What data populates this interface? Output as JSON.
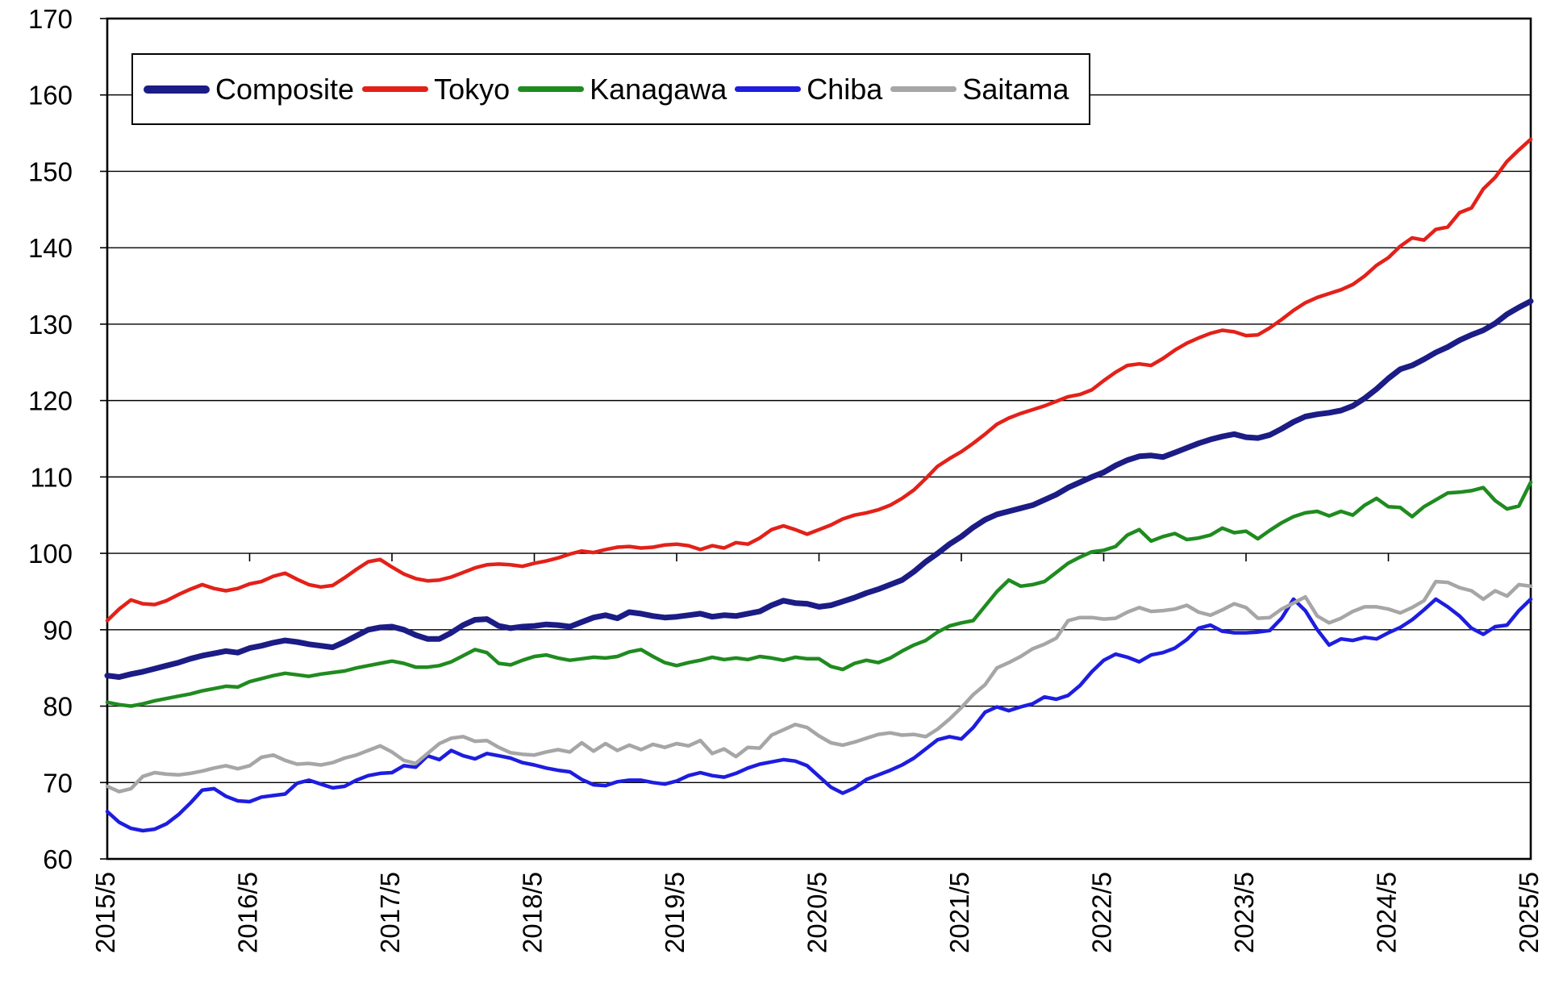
{
  "chart_data": {
    "type": "line",
    "title": "",
    "xlabel": "",
    "ylabel": "",
    "ylim": [
      60,
      170
    ],
    "y_ticks": [
      60,
      70,
      80,
      90,
      100,
      110,
      120,
      130,
      140,
      150,
      160,
      170
    ],
    "x_tick_labels": [
      "2015/5",
      "2016/5",
      "2017/5",
      "2018/5",
      "2019/5",
      "2020/5",
      "2021/5",
      "2022/5",
      "2023/5",
      "2024/5",
      "2025/5"
    ],
    "x_tick_months": [
      0,
      12,
      24,
      36,
      48,
      60,
      72,
      84,
      96,
      108,
      120
    ],
    "x_months_total": 120,
    "grid": "horizontal-only",
    "category_axis_crosses_at": 100,
    "legend_position": "top-left-inside",
    "axis_color": "#000000",
    "series": [
      {
        "name": "Composite",
        "color": "#1b1c85",
        "width": 7,
        "values": [
          84.0,
          83.8,
          84.2,
          84.5,
          84.9,
          85.3,
          85.7,
          86.2,
          86.6,
          86.9,
          87.2,
          87.0,
          87.6,
          87.9,
          88.3,
          88.6,
          88.4,
          88.1,
          87.9,
          87.7,
          88.4,
          89.2,
          90.0,
          90.3,
          90.4,
          90.0,
          89.3,
          88.8,
          88.8,
          89.6,
          90.6,
          91.3,
          91.4,
          90.5,
          90.2,
          90.4,
          90.5,
          90.7,
          90.6,
          90.4,
          91.0,
          91.6,
          91.9,
          91.5,
          92.3,
          92.1,
          91.8,
          91.6,
          91.7,
          91.9,
          92.1,
          91.7,
          91.9,
          91.8,
          92.1,
          92.4,
          93.2,
          93.8,
          93.5,
          93.4,
          93.0,
          93.2,
          93.7,
          94.2,
          94.8,
          95.3,
          95.9,
          96.5,
          97.6,
          98.9,
          100.0,
          101.2,
          102.2,
          103.4,
          104.4,
          105.1,
          105.5,
          105.9,
          106.3,
          107.0,
          107.7,
          108.6,
          109.3,
          110.0,
          110.6,
          111.5,
          112.2,
          112.7,
          112.8,
          112.6,
          113.2,
          113.8,
          114.4,
          114.9,
          115.3,
          115.6,
          115.2,
          115.1,
          115.5,
          116.3,
          117.2,
          117.9,
          118.2,
          118.4,
          118.7,
          119.3,
          120.3,
          121.5,
          122.9,
          124.1,
          124.6,
          125.4,
          126.3,
          127.0,
          127.9,
          128.6,
          129.2,
          130.1,
          131.3,
          132.2,
          133.0
        ]
      },
      {
        "name": "Tokyo",
        "color": "#e32119",
        "width": 4.5,
        "values": [
          91.2,
          92.7,
          93.9,
          93.4,
          93.3,
          93.8,
          94.6,
          95.3,
          95.9,
          95.4,
          95.1,
          95.4,
          96.0,
          96.3,
          97.0,
          97.4,
          96.6,
          95.9,
          95.6,
          95.8,
          96.8,
          97.9,
          98.9,
          99.2,
          98.2,
          97.3,
          96.7,
          96.4,
          96.5,
          96.9,
          97.5,
          98.1,
          98.5,
          98.6,
          98.5,
          98.3,
          98.7,
          99.0,
          99.4,
          99.9,
          100.3,
          100.1,
          100.5,
          100.8,
          100.9,
          100.7,
          100.8,
          101.1,
          101.2,
          101.0,
          100.5,
          101.0,
          100.7,
          101.4,
          101.2,
          102.0,
          103.1,
          103.6,
          103.1,
          102.5,
          103.1,
          103.7,
          104.5,
          105.0,
          105.3,
          105.7,
          106.3,
          107.2,
          108.3,
          109.8,
          111.4,
          112.4,
          113.3,
          114.4,
          115.6,
          116.9,
          117.7,
          118.3,
          118.8,
          119.3,
          119.9,
          120.5,
          120.8,
          121.4,
          122.6,
          123.7,
          124.6,
          124.8,
          124.6,
          125.5,
          126.6,
          127.5,
          128.2,
          128.8,
          129.2,
          129.0,
          128.5,
          128.6,
          129.5,
          130.6,
          131.8,
          132.8,
          133.5,
          134.0,
          134.5,
          135.2,
          136.3,
          137.7,
          138.7,
          140.2,
          141.3,
          141.0,
          142.4,
          142.7,
          144.6,
          145.2,
          147.7,
          149.2,
          151.3,
          152.8,
          154.2
        ]
      },
      {
        "name": "Kanagawa",
        "color": "#1f8b1f",
        "width": 4.5,
        "values": [
          80.5,
          80.2,
          80.0,
          80.3,
          80.7,
          81.0,
          81.3,
          81.6,
          82.0,
          82.3,
          82.6,
          82.5,
          83.2,
          83.6,
          84.0,
          84.3,
          84.1,
          83.9,
          84.2,
          84.4,
          84.6,
          85.0,
          85.3,
          85.6,
          85.9,
          85.6,
          85.1,
          85.1,
          85.3,
          85.8,
          86.6,
          87.4,
          87.0,
          85.6,
          85.4,
          86.0,
          86.5,
          86.7,
          86.3,
          86.0,
          86.2,
          86.4,
          86.3,
          86.5,
          87.1,
          87.4,
          86.5,
          85.7,
          85.3,
          85.7,
          86.0,
          86.4,
          86.1,
          86.3,
          86.1,
          86.5,
          86.3,
          86.0,
          86.4,
          86.2,
          86.2,
          85.2,
          84.8,
          85.6,
          86.0,
          85.7,
          86.3,
          87.2,
          88.0,
          88.6,
          89.7,
          90.5,
          90.9,
          91.2,
          93.1,
          95.0,
          96.5,
          95.7,
          95.9,
          96.3,
          97.5,
          98.7,
          99.5,
          100.2,
          100.4,
          100.9,
          102.4,
          103.1,
          101.6,
          102.2,
          102.6,
          101.8,
          102.0,
          102.4,
          103.3,
          102.7,
          102.9,
          101.9,
          103.0,
          104.0,
          104.8,
          105.3,
          105.5,
          104.9,
          105.5,
          105.0,
          106.3,
          107.2,
          106.1,
          106.0,
          104.8,
          106.1,
          107.0,
          107.9,
          108.0,
          108.2,
          108.6,
          106.9,
          105.8,
          106.2,
          109.3
        ]
      },
      {
        "name": "Chiba",
        "color": "#1d1de0",
        "width": 4.5,
        "values": [
          66.2,
          64.8,
          64.0,
          63.7,
          63.9,
          64.6,
          65.8,
          67.3,
          69.0,
          69.2,
          68.2,
          67.6,
          67.5,
          68.1,
          68.3,
          68.5,
          69.9,
          70.3,
          69.8,
          69.3,
          69.5,
          70.3,
          70.9,
          71.2,
          71.3,
          72.2,
          72.0,
          73.5,
          73.0,
          74.2,
          73.5,
          73.1,
          73.8,
          73.5,
          73.2,
          72.6,
          72.3,
          71.9,
          71.6,
          71.4,
          70.4,
          69.7,
          69.6,
          70.1,
          70.3,
          70.3,
          70.0,
          69.8,
          70.2,
          70.9,
          71.3,
          70.9,
          70.7,
          71.2,
          71.9,
          72.4,
          72.7,
          73.0,
          72.8,
          72.2,
          70.8,
          69.4,
          68.6,
          69.3,
          70.4,
          71.0,
          71.6,
          72.3,
          73.2,
          74.4,
          75.6,
          76.0,
          75.7,
          77.2,
          79.2,
          79.9,
          79.4,
          79.9,
          80.3,
          81.2,
          80.9,
          81.4,
          82.7,
          84.5,
          86.0,
          86.8,
          86.4,
          85.8,
          86.7,
          87.0,
          87.6,
          88.7,
          90.2,
          90.6,
          89.8,
          89.6,
          89.6,
          89.7,
          89.9,
          91.5,
          94.0,
          92.5,
          90.0,
          88.0,
          88.8,
          88.6,
          89.0,
          88.8,
          89.6,
          90.3,
          91.3,
          92.6,
          94.0,
          93.0,
          91.8,
          90.2,
          89.4,
          90.4,
          90.6,
          92.5,
          94.0
        ]
      },
      {
        "name": "Saitama",
        "color": "#a6a6a6",
        "width": 4.5,
        "values": [
          69.5,
          68.8,
          69.2,
          70.8,
          71.3,
          71.1,
          71.0,
          71.2,
          71.5,
          71.9,
          72.2,
          71.8,
          72.2,
          73.3,
          73.6,
          72.9,
          72.4,
          72.5,
          72.3,
          72.6,
          73.2,
          73.6,
          74.2,
          74.8,
          74.0,
          72.9,
          72.5,
          73.8,
          75.1,
          75.8,
          76.0,
          75.4,
          75.5,
          74.6,
          73.9,
          73.7,
          73.6,
          74.0,
          74.3,
          74.0,
          75.2,
          74.1,
          75.1,
          74.2,
          74.9,
          74.3,
          75.0,
          74.6,
          75.1,
          74.8,
          75.5,
          73.8,
          74.4,
          73.4,
          74.6,
          74.5,
          76.2,
          76.9,
          77.6,
          77.2,
          76.1,
          75.2,
          74.9,
          75.3,
          75.8,
          76.3,
          76.5,
          76.2,
          76.3,
          76.0,
          77.0,
          78.3,
          79.8,
          81.5,
          82.8,
          85.0,
          85.7,
          86.5,
          87.5,
          88.1,
          88.9,
          91.2,
          91.6,
          91.6,
          91.4,
          91.5,
          92.3,
          92.9,
          92.4,
          92.5,
          92.7,
          93.2,
          92.3,
          91.9,
          92.6,
          93.4,
          92.9,
          91.5,
          91.6,
          92.7,
          93.5,
          94.3,
          91.8,
          90.9,
          91.5,
          92.4,
          93.0,
          93.0,
          92.7,
          92.2,
          92.9,
          93.8,
          96.3,
          96.2,
          95.5,
          95.1,
          94.0,
          95.1,
          94.4,
          95.9,
          95.7
        ]
      }
    ]
  },
  "legend": {
    "items": [
      "Composite",
      "Tokyo",
      "Kanagawa",
      "Chiba",
      "Saitama"
    ]
  }
}
